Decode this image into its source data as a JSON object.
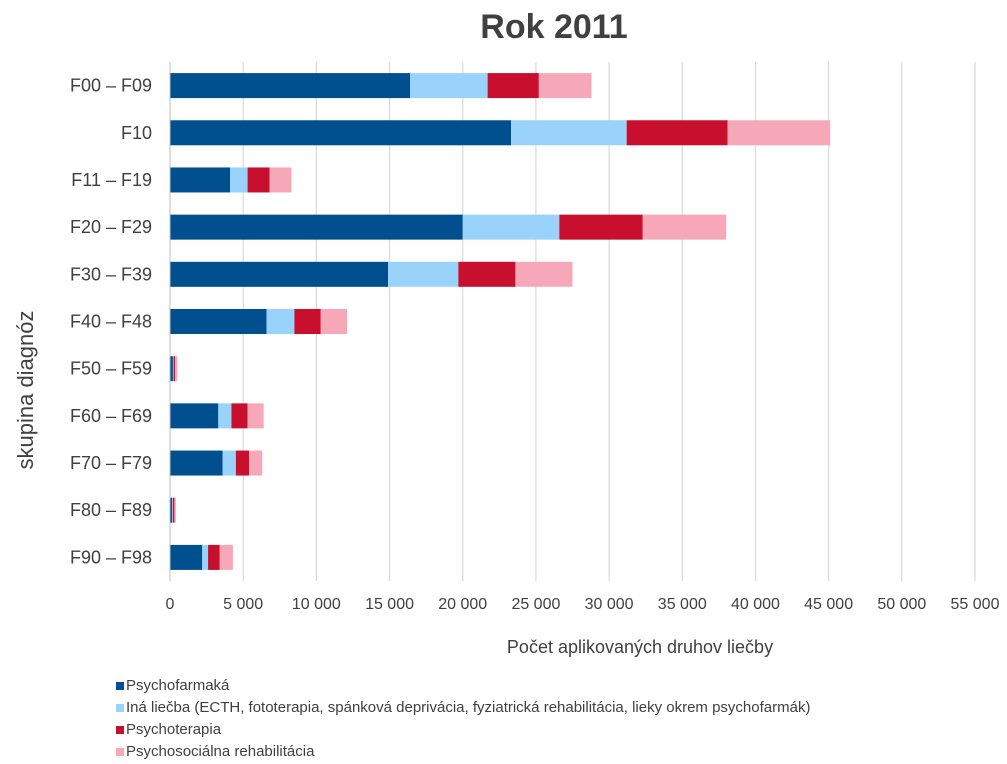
{
  "chart_data": {
    "type": "bar",
    "orientation": "horizontal",
    "stacked": true,
    "title": "Rok 2011",
    "xlabel": "Počet aplikovaných druhov liečby",
    "ylabel": "skupina diagnóz",
    "xlim": [
      0,
      55000
    ],
    "x_ticks": [
      0,
      5000,
      10000,
      15000,
      20000,
      25000,
      30000,
      35000,
      40000,
      45000,
      50000,
      55000
    ],
    "x_tick_labels": [
      "0",
      "5 000",
      "10 000",
      "15 000",
      "20 000",
      "25 000",
      "30 000",
      "35 000",
      "40 000",
      "45 000",
      "50 000",
      "55 000"
    ],
    "grid": "vertical",
    "legend_position": "bottom-left",
    "categories": [
      "F00 – F09",
      "F10",
      "F11 – F19",
      "F20 – F29",
      "F30 – F39",
      "F40 – F48",
      "F50 – F59",
      "F60 – F69",
      "F70 – F79",
      "F80 – F89",
      "F90 – F98"
    ],
    "series": [
      {
        "name": "Psychofarmaká",
        "color": "#00508f",
        "values": [
          16400,
          23300,
          4100,
          20000,
          14900,
          6600,
          200,
          3300,
          3600,
          150,
          2200
        ]
      },
      {
        "name": "Iná liečba (ECTH, fototerapia, spánková deprivácia, fyziatrická rehabilitácia, lieky okrem psychofarmák)",
        "color": "#99d2fb",
        "values": [
          5300,
          7900,
          1200,
          6600,
          4800,
          1900,
          50,
          900,
          900,
          50,
          400
        ]
      },
      {
        "name": "Psychoterapia",
        "color": "#c8102e",
        "values": [
          3500,
          6900,
          1500,
          5700,
          3900,
          1800,
          100,
          1100,
          900,
          100,
          800
        ]
      },
      {
        "name": "Psychosociálna rehabilitácia",
        "color": "#f7a8b8",
        "values": [
          3600,
          7000,
          1500,
          5700,
          3900,
          1800,
          150,
          1100,
          900,
          100,
          900
        ]
      }
    ]
  }
}
